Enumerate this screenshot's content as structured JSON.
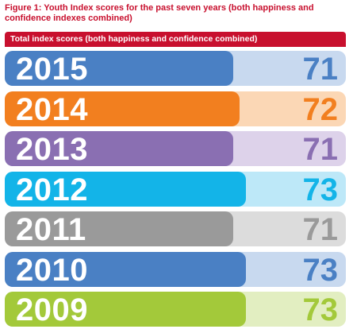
{
  "figure_title": "Figure 1: Youth Index scores for the past seven years (both happiness and confidence indexes combined)",
  "header_label": "Total index scores (both happiness and confidence combined)",
  "colors": {
    "title": "#c8102e",
    "header_bg": "#c8102e"
  },
  "chart_data": {
    "type": "bar",
    "orientation": "horizontal",
    "title": "Figure 1: Youth Index scores for the past seven years (both happiness and confidence indexes combined)",
    "subtitle": "Total index scores (both happiness and confidence combined)",
    "categories": [
      "2015",
      "2014",
      "2013",
      "2012",
      "2011",
      "2010",
      "2009"
    ],
    "values": [
      71,
      72,
      71,
      73,
      71,
      73,
      73
    ],
    "xlim": [
      0,
      100
    ],
    "grid": false,
    "legend": "none",
    "bar_colors": [
      "#4a80c4",
      "#f27f1f",
      "#8a6fb2",
      "#13b4e8",
      "#9a9a9a",
      "#4a80c4",
      "#a3c93a"
    ],
    "track_colors": [
      "#c8d9ef",
      "#fbd7b5",
      "#ddd2ea",
      "#bde8f8",
      "#dcdcdc",
      "#c8d9ef",
      "#e2eec1"
    ]
  }
}
